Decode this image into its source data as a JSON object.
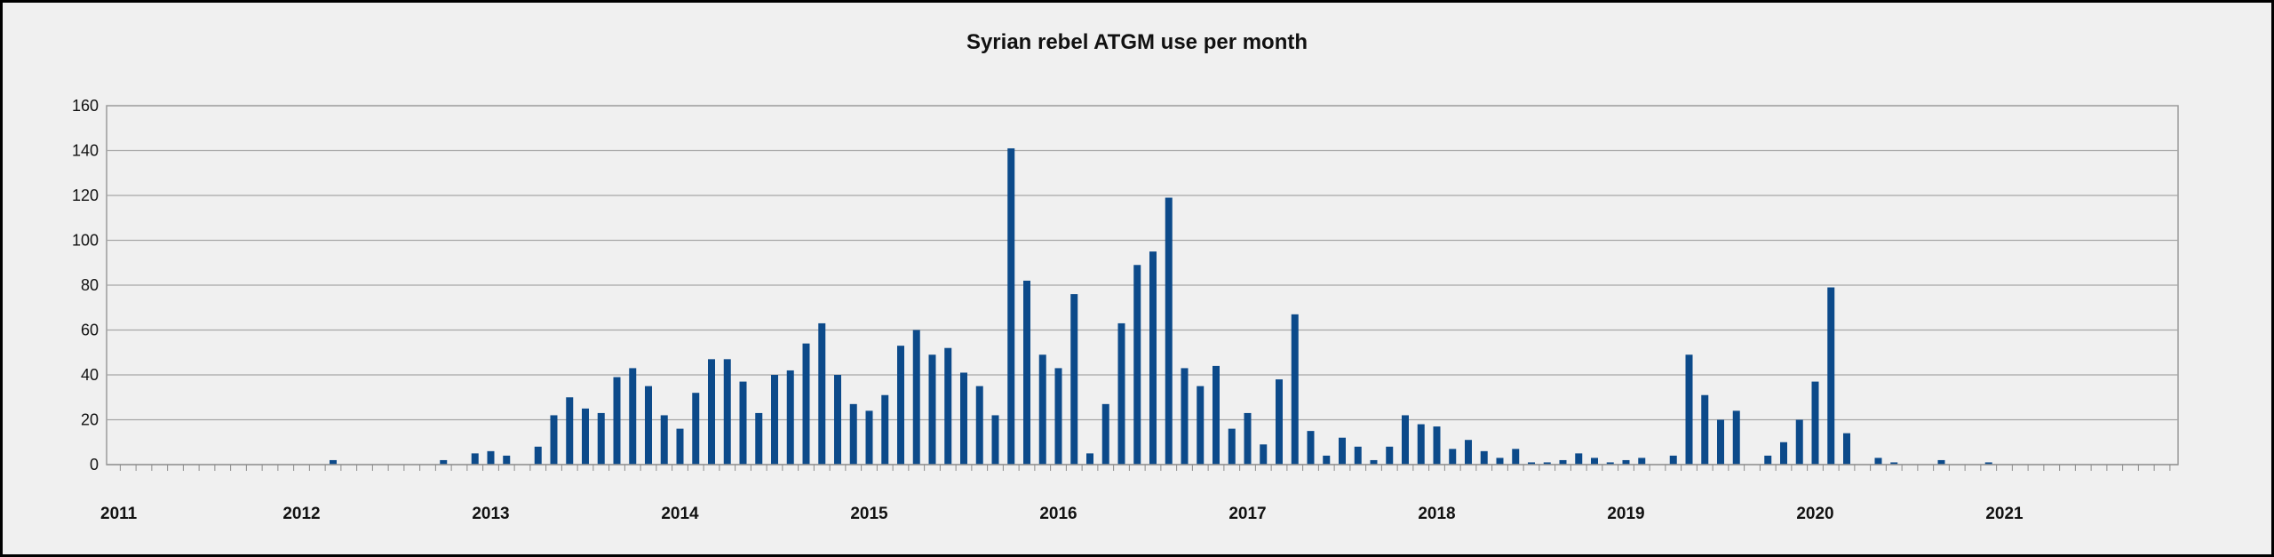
{
  "chart_data": {
    "type": "bar",
    "title": "Syrian rebel ATGM use per month",
    "xlabel": "",
    "ylabel": "",
    "ylim": [
      0,
      160
    ],
    "yticks": [
      0,
      20,
      40,
      60,
      80,
      100,
      120,
      140,
      160
    ],
    "x_start": "2011-01",
    "x_year_labels": [
      "2011",
      "2012",
      "2013",
      "2014",
      "2015",
      "2016",
      "2017",
      "2018",
      "2019",
      "2020",
      "2021"
    ],
    "grid": true,
    "legend": "none",
    "bar_color": "#0c4a8a",
    "values": [
      0,
      0,
      0,
      0,
      0,
      0,
      0,
      0,
      0,
      0,
      0,
      0,
      0,
      0,
      2,
      0,
      0,
      0,
      0,
      0,
      0,
      2,
      0,
      5,
      6,
      4,
      0,
      8,
      22,
      30,
      25,
      23,
      39,
      43,
      35,
      22,
      16,
      32,
      47,
      47,
      37,
      23,
      40,
      42,
      54,
      63,
      40,
      27,
      24,
      31,
      53,
      60,
      49,
      52,
      41,
      35,
      22,
      141,
      82,
      49,
      43,
      76,
      5,
      27,
      63,
      89,
      95,
      119,
      43,
      35,
      44,
      16,
      23,
      9,
      38,
      67,
      15,
      4,
      12,
      8,
      2,
      8,
      22,
      18,
      17,
      7,
      11,
      6,
      3,
      7,
      1,
      1,
      2,
      5,
      3,
      1,
      2,
      3,
      0,
      4,
      49,
      31,
      20,
      24,
      0,
      4,
      10,
      20,
      37,
      79,
      14,
      0,
      3,
      1,
      0,
      0,
      2,
      0,
      0,
      1,
      0,
      0,
      0,
      0,
      0,
      0,
      0,
      0,
      0,
      0,
      0,
      0,
      0
    ]
  }
}
